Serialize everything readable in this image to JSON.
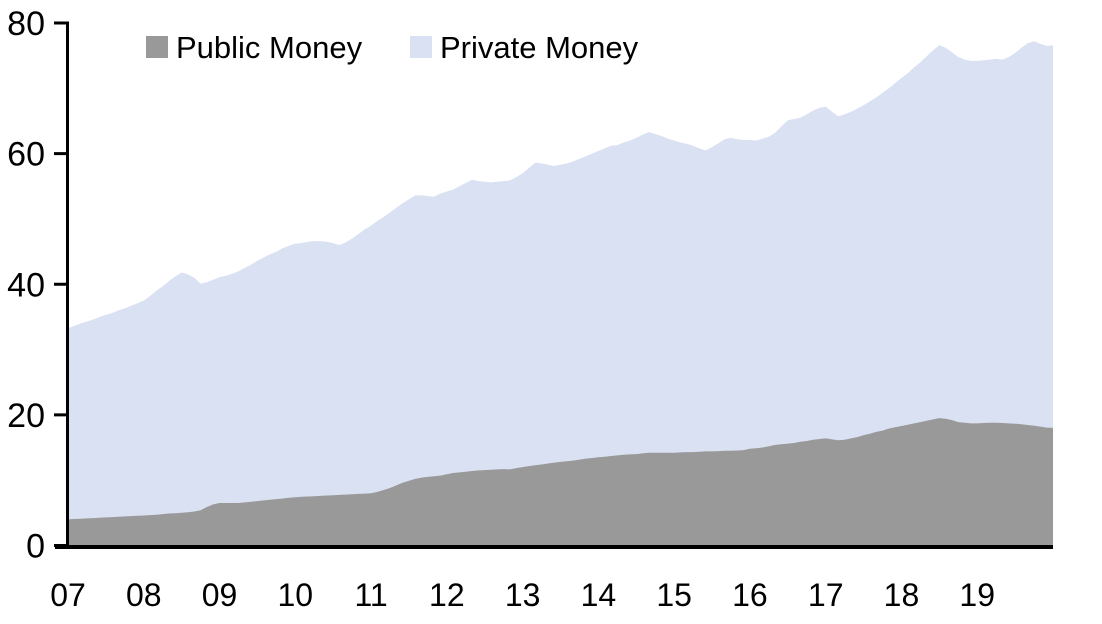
{
  "chart_data": {
    "type": "area",
    "stacked": true,
    "title": "",
    "xlabel": "",
    "ylabel": "",
    "x_start_year": 2007,
    "frequency": "monthly",
    "x_tick_labels": [
      "07",
      "08",
      "09",
      "10",
      "11",
      "12",
      "13",
      "14",
      "15",
      "16",
      "17",
      "18",
      "19"
    ],
    "y_ticks": [
      0,
      20,
      40,
      60,
      80
    ],
    "ylim": [
      0,
      80
    ],
    "grid": false,
    "legend_position": "top-inside",
    "series": [
      {
        "name": "Public Money",
        "color": "#999999",
        "values": [
          4.0,
          4.05,
          4.1,
          4.15,
          4.2,
          4.25,
          4.3,
          4.35,
          4.4,
          4.45,
          4.5,
          4.55,
          4.6,
          4.65,
          4.7,
          4.8,
          4.9,
          4.95,
          5.0,
          5.1,
          5.2,
          5.4,
          5.9,
          6.3,
          6.5,
          6.5,
          6.5,
          6.5,
          6.6,
          6.7,
          6.8,
          6.9,
          7.0,
          7.1,
          7.2,
          7.3,
          7.4,
          7.45,
          7.5,
          7.55,
          7.6,
          7.65,
          7.7,
          7.75,
          7.8,
          7.85,
          7.9,
          7.95,
          8.0,
          8.2,
          8.5,
          8.8,
          9.2,
          9.6,
          9.9,
          10.2,
          10.4,
          10.5,
          10.6,
          10.7,
          10.9,
          11.1,
          11.2,
          11.3,
          11.4,
          11.5,
          11.55,
          11.6,
          11.65,
          11.7,
          11.65,
          11.85,
          12.0,
          12.15,
          12.3,
          12.4,
          12.55,
          12.7,
          12.8,
          12.9,
          13.0,
          13.15,
          13.3,
          13.4,
          13.5,
          13.6,
          13.7,
          13.8,
          13.9,
          13.95,
          14.0,
          14.1,
          14.2,
          14.2,
          14.2,
          14.2,
          14.2,
          14.25,
          14.3,
          14.3,
          14.35,
          14.4,
          14.4,
          14.45,
          14.5,
          14.5,
          14.55,
          14.6,
          14.8,
          14.9,
          15.0,
          15.2,
          15.4,
          15.5,
          15.6,
          15.7,
          15.9,
          16.0,
          16.2,
          16.3,
          16.4,
          16.25,
          16.1,
          16.2,
          16.4,
          16.6,
          16.9,
          17.1,
          17.4,
          17.6,
          17.9,
          18.1,
          18.3,
          18.5,
          18.7,
          18.9,
          19.1,
          19.3,
          19.5,
          19.4,
          19.2,
          18.9,
          18.8,
          18.7,
          18.7,
          18.75,
          18.8,
          18.8,
          18.75,
          18.7,
          18.65,
          18.55,
          18.45,
          18.35,
          18.2,
          18.05,
          18.0
        ]
      },
      {
        "name": "Private Money",
        "color": "#d9e1f2",
        "values": [
          29.3,
          29.55,
          29.9,
          30.15,
          30.4,
          30.75,
          31.0,
          31.25,
          31.6,
          31.85,
          32.2,
          32.55,
          32.9,
          33.55,
          34.3,
          34.9,
          35.6,
          36.25,
          36.8,
          36.4,
          35.8,
          34.7,
          34.4,
          34.4,
          34.6,
          34.8,
          35.1,
          35.5,
          35.9,
          36.3,
          36.8,
          37.2,
          37.6,
          37.9,
          38.3,
          38.6,
          38.8,
          38.85,
          39.0,
          39.05,
          39.0,
          38.85,
          38.6,
          38.25,
          38.6,
          39.15,
          39.8,
          40.45,
          41.0,
          41.5,
          41.8,
          42.2,
          42.5,
          42.8,
          43.1,
          43.4,
          43.2,
          43.0,
          42.8,
          43.2,
          43.3,
          43.4,
          43.8,
          44.2,
          44.6,
          44.3,
          44.15,
          44.0,
          44.05,
          44.1,
          44.25,
          44.55,
          45.0,
          45.65,
          46.3,
          46.1,
          45.75,
          45.4,
          45.5,
          45.6,
          45.8,
          46.05,
          46.3,
          46.6,
          46.9,
          47.2,
          47.5,
          47.5,
          47.8,
          48.05,
          48.4,
          48.8,
          49.1,
          48.8,
          48.5,
          48.1,
          47.8,
          47.45,
          47.2,
          46.9,
          46.45,
          46.1,
          46.6,
          47.15,
          47.7,
          47.9,
          47.65,
          47.5,
          47.3,
          47.1,
          47.3,
          47.4,
          47.8,
          48.7,
          49.5,
          49.6,
          49.6,
          50.0,
          50.4,
          50.7,
          50.8,
          50.15,
          49.6,
          49.8,
          50.0,
          50.3,
          50.5,
          50.9,
          51.2,
          51.7,
          52.1,
          52.7,
          53.3,
          53.8,
          54.5,
          55.1,
          55.8,
          56.5,
          57.1,
          56.8,
          56.3,
          55.9,
          55.6,
          55.5,
          55.5,
          55.55,
          55.6,
          55.7,
          55.65,
          56.1,
          56.75,
          57.65,
          58.45,
          58.85,
          58.6,
          58.45,
          58.6
        ]
      }
    ]
  },
  "colors": {
    "axis": "#000000",
    "text": "#000000",
    "background": "#ffffff"
  }
}
